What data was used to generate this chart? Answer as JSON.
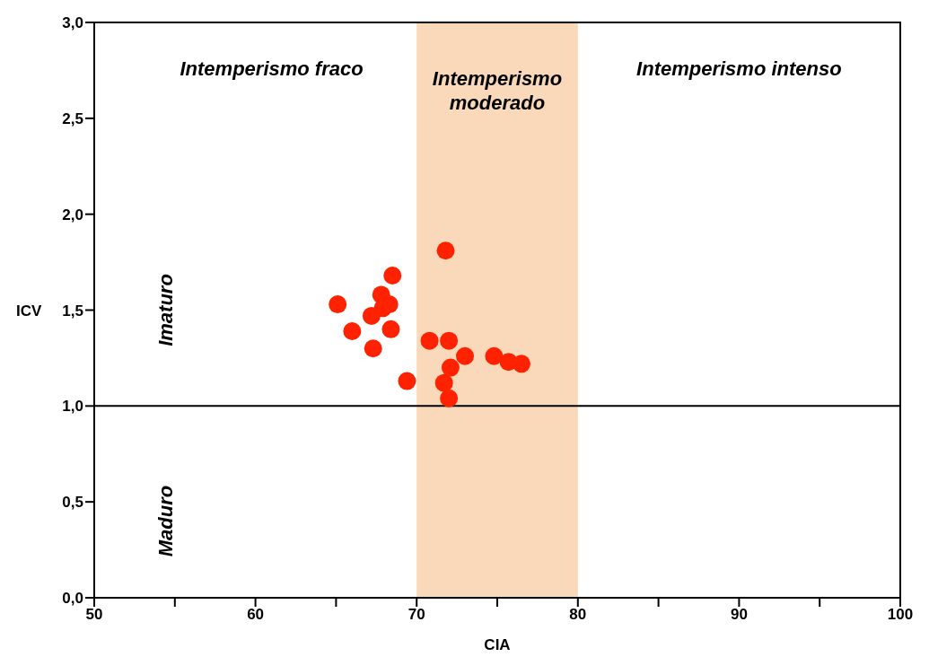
{
  "chart_data": {
    "type": "scatter",
    "xlabel": "CIA",
    "ylabel": "ICV",
    "x": [
      65.1,
      68.5,
      67.8,
      68.3,
      67.9,
      67.2,
      66.0,
      68.4,
      67.3,
      69.4,
      71.8,
      70.8,
      72.0,
      73.0,
      72.1,
      71.7,
      72.0,
      74.8,
      75.7,
      76.5
    ],
    "values": [
      1.53,
      1.68,
      1.58,
      1.53,
      1.51,
      1.47,
      1.39,
      1.4,
      1.3,
      1.13,
      1.81,
      1.34,
      1.34,
      1.26,
      1.2,
      1.12,
      1.04,
      1.26,
      1.23,
      1.22
    ],
    "color": "#ff2200",
    "marker": "circle",
    "xlim": [
      50,
      100
    ],
    "xticks": [
      50,
      {
        "value": 55,
        "label": null
      },
      60,
      {
        "value": 65,
        "label": null
      },
      70,
      {
        "value": 75,
        "label": null
      },
      80,
      {
        "value": 85,
        "label": null
      },
      90,
      {
        "value": 95,
        "label": null
      },
      100
    ],
    "ylim": [
      0,
      3
    ],
    "yticks": [
      {
        "value": 0,
        "label": "0,0"
      },
      {
        "value": 0.5,
        "label": "0,5"
      },
      {
        "value": 1,
        "label": "1,0"
      },
      {
        "value": 1.5,
        "label": "1,5"
      },
      {
        "value": 2,
        "label": "2,0"
      },
      {
        "value": 2.5,
        "label": "2,5"
      },
      {
        "value": 3,
        "label": "3,0"
      }
    ],
    "ref_lines": [
      {
        "axis": "y",
        "value": 1,
        "color": "#000000"
      }
    ],
    "bands": [
      {
        "axis": "x",
        "from": 70,
        "to": 80,
        "label": "Intemperismo moderado",
        "color": "#fad9bb"
      }
    ],
    "annotations": [
      "Intemperismo fraco",
      "Intemperismo intenso",
      "Imaturo",
      "Maduro"
    ],
    "grid": false,
    "legend": false
  }
}
